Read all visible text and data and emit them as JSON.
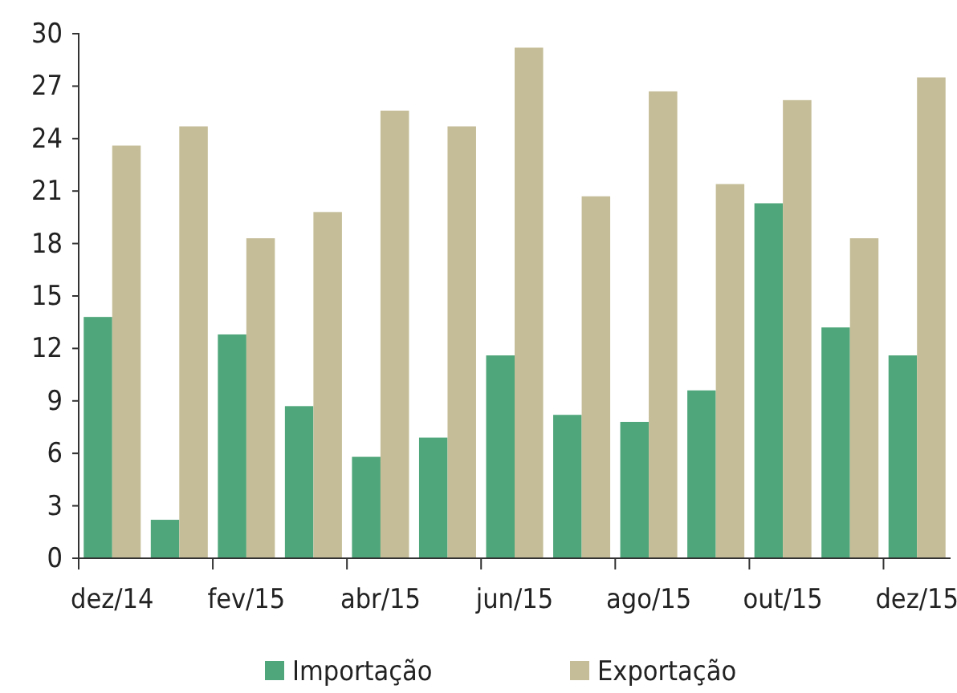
{
  "chart_data": {
    "type": "bar",
    "categories": [
      "dez/14",
      null,
      "fev/15",
      null,
      "abr/15",
      null,
      "jun/15",
      null,
      "ago/15",
      null,
      "out/15",
      null,
      "dez/15"
    ],
    "series": [
      {
        "name": "Importação",
        "color": "#4fa67a",
        "values": [
          13.8,
          2.2,
          12.8,
          8.7,
          5.8,
          6.9,
          11.6,
          8.2,
          7.8,
          9.6,
          20.3,
          13.2,
          11.6
        ]
      },
      {
        "name": "Exportação",
        "color": "#c5bd97",
        "values": [
          23.6,
          24.7,
          18.3,
          19.8,
          25.6,
          24.7,
          29.2,
          20.7,
          26.7,
          21.4,
          26.2,
          18.3,
          27.5
        ]
      }
    ],
    "ylim": [
      0,
      30
    ],
    "yticks": [
      0,
      3,
      6,
      9,
      12,
      15,
      18,
      21,
      24,
      27,
      30
    ],
    "grid": false,
    "legend": "bottom"
  }
}
